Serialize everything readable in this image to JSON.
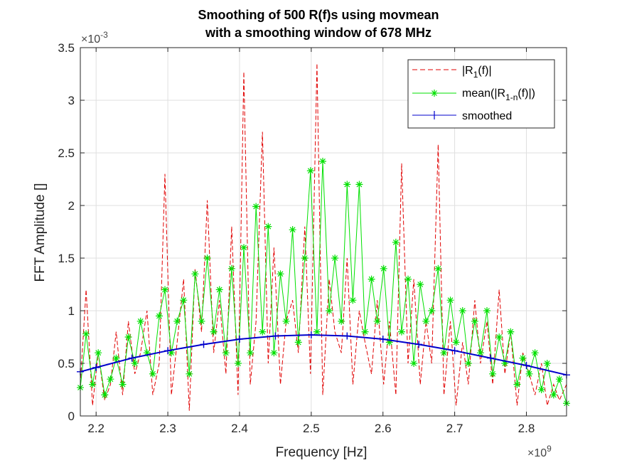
{
  "chart_data": {
    "type": "line",
    "title_line1": "Smoothing of 500 R(f)s using movmean",
    "title_line2": "with a smoothing window of 678 MHz",
    "xlabel": "Frequency [Hz]",
    "ylabel": "FFT Amplitude []",
    "x_exponent_base": "×10",
    "x_exponent_power": "9",
    "y_exponent_base": "×10",
    "y_exponent_power": "-3",
    "xlim": [
      2.178,
      2.856
    ],
    "ylim": [
      0,
      3.5
    ],
    "x_scale_note": "x values in units of 1e9 Hz",
    "y_scale_note": "y values in units of 1e-3",
    "xticks": [
      2.2,
      2.3,
      2.4,
      2.5,
      2.6,
      2.7,
      2.8
    ],
    "xtick_labels": [
      "2.2",
      "2.3",
      "2.4",
      "2.5",
      "2.6",
      "2.7",
      "2.8"
    ],
    "yticks": [
      0,
      0.5,
      1,
      1.5,
      2,
      2.5,
      3,
      3.5
    ],
    "ytick_labels": [
      "0",
      "0.5",
      "1",
      "1.5",
      "2",
      "2.5",
      "3",
      "3.5"
    ],
    "grid": true,
    "legend_position": "top-right",
    "legend": [
      {
        "base": "|R",
        "sub": "1",
        "tail": "(f)|",
        "style": "dashed",
        "color": "#e00000"
      },
      {
        "base": "mean(|R",
        "sub": "1-n",
        "tail": "(f)|)",
        "style": "solid-asterisk",
        "color": "#00e000"
      },
      {
        "base": "smoothed",
        "sub": "",
        "tail": "",
        "style": "solid-plus",
        "color": "#0000cc"
      }
    ],
    "series": [
      {
        "name": "|R1(f)|",
        "color": "#e00000",
        "x": [
          2.178,
          2.186,
          2.195,
          2.203,
          2.212,
          2.22,
          2.228,
          2.237,
          2.245,
          2.254,
          2.262,
          2.271,
          2.279,
          2.288,
          2.296,
          2.305,
          2.313,
          2.322,
          2.33,
          2.338,
          2.347,
          2.355,
          2.364,
          2.372,
          2.381,
          2.389,
          2.398,
          2.406,
          2.415,
          2.423,
          2.432,
          2.44,
          2.448,
          2.457,
          2.465,
          2.474,
          2.482,
          2.491,
          2.499,
          2.508,
          2.516,
          2.525,
          2.533,
          2.542,
          2.55,
          2.558,
          2.567,
          2.575,
          2.584,
          2.592,
          2.601,
          2.609,
          2.618,
          2.626,
          2.635,
          2.643,
          2.652,
          2.66,
          2.668,
          2.677,
          2.685,
          2.694,
          2.702,
          2.711,
          2.719,
          2.728,
          2.736,
          2.745,
          2.753,
          2.762,
          2.77,
          2.778,
          2.787,
          2.795,
          2.804,
          2.812,
          2.821,
          2.829,
          2.838,
          2.846,
          2.856
        ],
        "y": [
          0.3,
          1.2,
          0.1,
          0.6,
          0.15,
          0.3,
          0.8,
          0.2,
          0.9,
          0.4,
          0.6,
          1.0,
          0.2,
          0.5,
          2.3,
          0.2,
          0.7,
          1.3,
          0.05,
          1.4,
          0.8,
          2.05,
          0.6,
          1.1,
          0.4,
          1.8,
          0.2,
          3.27,
          0.3,
          0.9,
          2.7,
          0.5,
          1.6,
          0.3,
          0.9,
          1.1,
          0.6,
          1.8,
          0.4,
          3.35,
          0.2,
          1.3,
          0.8,
          0.6,
          1.5,
          0.3,
          1.0,
          0.7,
          0.4,
          1.1,
          0.3,
          0.9,
          0.2,
          2.4,
          0.5,
          1.3,
          0.3,
          0.9,
          0.5,
          2.58,
          0.2,
          0.9,
          0.1,
          0.7,
          0.3,
          1.1,
          0.5,
          0.9,
          0.3,
          1.2,
          0.4,
          0.8,
          0.1,
          0.6,
          0.4,
          0.2,
          0.5,
          0.1,
          0.3,
          0.15,
          0.3
        ]
      },
      {
        "name": "mean(|R1-n(f)|)",
        "color": "#00e000",
        "x": [
          2.178,
          2.186,
          2.195,
          2.203,
          2.212,
          2.22,
          2.228,
          2.237,
          2.245,
          2.254,
          2.262,
          2.271,
          2.279,
          2.288,
          2.296,
          2.305,
          2.313,
          2.322,
          2.33,
          2.338,
          2.347,
          2.355,
          2.364,
          2.372,
          2.381,
          2.389,
          2.398,
          2.406,
          2.415,
          2.423,
          2.432,
          2.44,
          2.448,
          2.457,
          2.465,
          2.474,
          2.482,
          2.491,
          2.499,
          2.508,
          2.516,
          2.525,
          2.533,
          2.542,
          2.55,
          2.558,
          2.567,
          2.575,
          2.584,
          2.592,
          2.601,
          2.609,
          2.618,
          2.626,
          2.635,
          2.643,
          2.652,
          2.66,
          2.668,
          2.677,
          2.685,
          2.694,
          2.702,
          2.711,
          2.719,
          2.728,
          2.736,
          2.745,
          2.753,
          2.762,
          2.77,
          2.778,
          2.787,
          2.795,
          2.804,
          2.812,
          2.821,
          2.829,
          2.838,
          2.846,
          2.856
        ],
        "y": [
          0.27,
          0.78,
          0.3,
          0.6,
          0.2,
          0.35,
          0.55,
          0.3,
          0.75,
          0.5,
          0.9,
          0.6,
          0.4,
          0.95,
          1.2,
          0.6,
          0.9,
          1.1,
          0.4,
          1.35,
          0.9,
          1.5,
          0.8,
          1.2,
          0.6,
          1.4,
          0.5,
          1.6,
          0.6,
          1.99,
          0.8,
          1.8,
          0.6,
          1.35,
          0.9,
          1.77,
          0.7,
          1.5,
          2.33,
          0.8,
          2.42,
          1.0,
          1.5,
          0.9,
          2.2,
          1.1,
          2.2,
          0.8,
          1.3,
          0.9,
          1.4,
          0.7,
          1.65,
          0.8,
          1.3,
          0.5,
          1.25,
          0.9,
          1.0,
          1.4,
          0.6,
          1.1,
          0.7,
          1.0,
          0.5,
          0.9,
          0.6,
          1.0,
          0.4,
          0.75,
          0.5,
          0.8,
          0.3,
          0.55,
          0.4,
          0.6,
          0.25,
          0.5,
          0.2,
          0.35,
          0.12
        ]
      },
      {
        "name": "smoothed",
        "color": "#0000cc",
        "x": [
          2.178,
          2.2,
          2.25,
          2.3,
          2.35,
          2.4,
          2.45,
          2.5,
          2.55,
          2.6,
          2.65,
          2.7,
          2.75,
          2.8,
          2.856
        ],
        "y": [
          0.42,
          0.46,
          0.55,
          0.62,
          0.68,
          0.73,
          0.76,
          0.77,
          0.76,
          0.73,
          0.68,
          0.62,
          0.55,
          0.48,
          0.39
        ]
      }
    ]
  }
}
